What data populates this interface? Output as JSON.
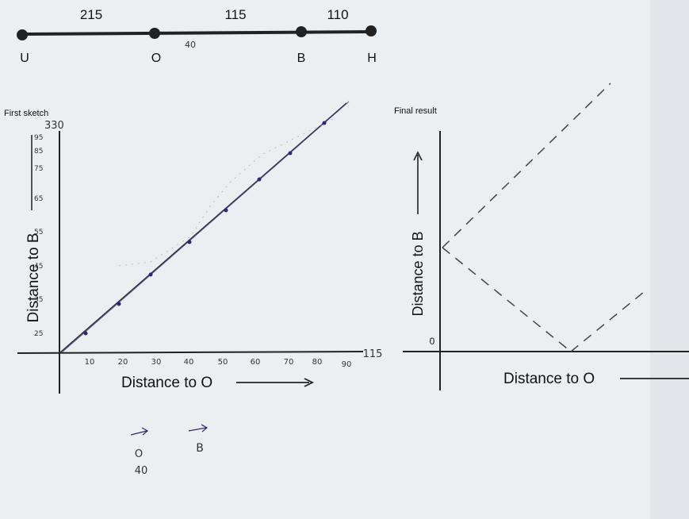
{
  "top_line": {
    "segments": [
      "215",
      "115",
      "110"
    ],
    "nodes": [
      "U",
      "O",
      "B",
      "H"
    ],
    "note": "40"
  },
  "first_sketch": {
    "title": "First sketch",
    "y_top": "330",
    "x_label": "Distance to O",
    "y_label": "Distance to B",
    "x_ticks": [
      "10",
      "20",
      "30",
      "40",
      "50",
      "60",
      "70",
      "80",
      "90"
    ],
    "x_end": "115",
    "y_ticks": [
      "25",
      "35",
      "45",
      "55",
      "65",
      "75",
      "85",
      "95"
    ]
  },
  "final_result": {
    "title": "Final result",
    "origin": "0",
    "x_label": "Distance to O",
    "y_label": "Distance to B"
  },
  "notes": [
    "O",
    "40",
    "B"
  ]
}
